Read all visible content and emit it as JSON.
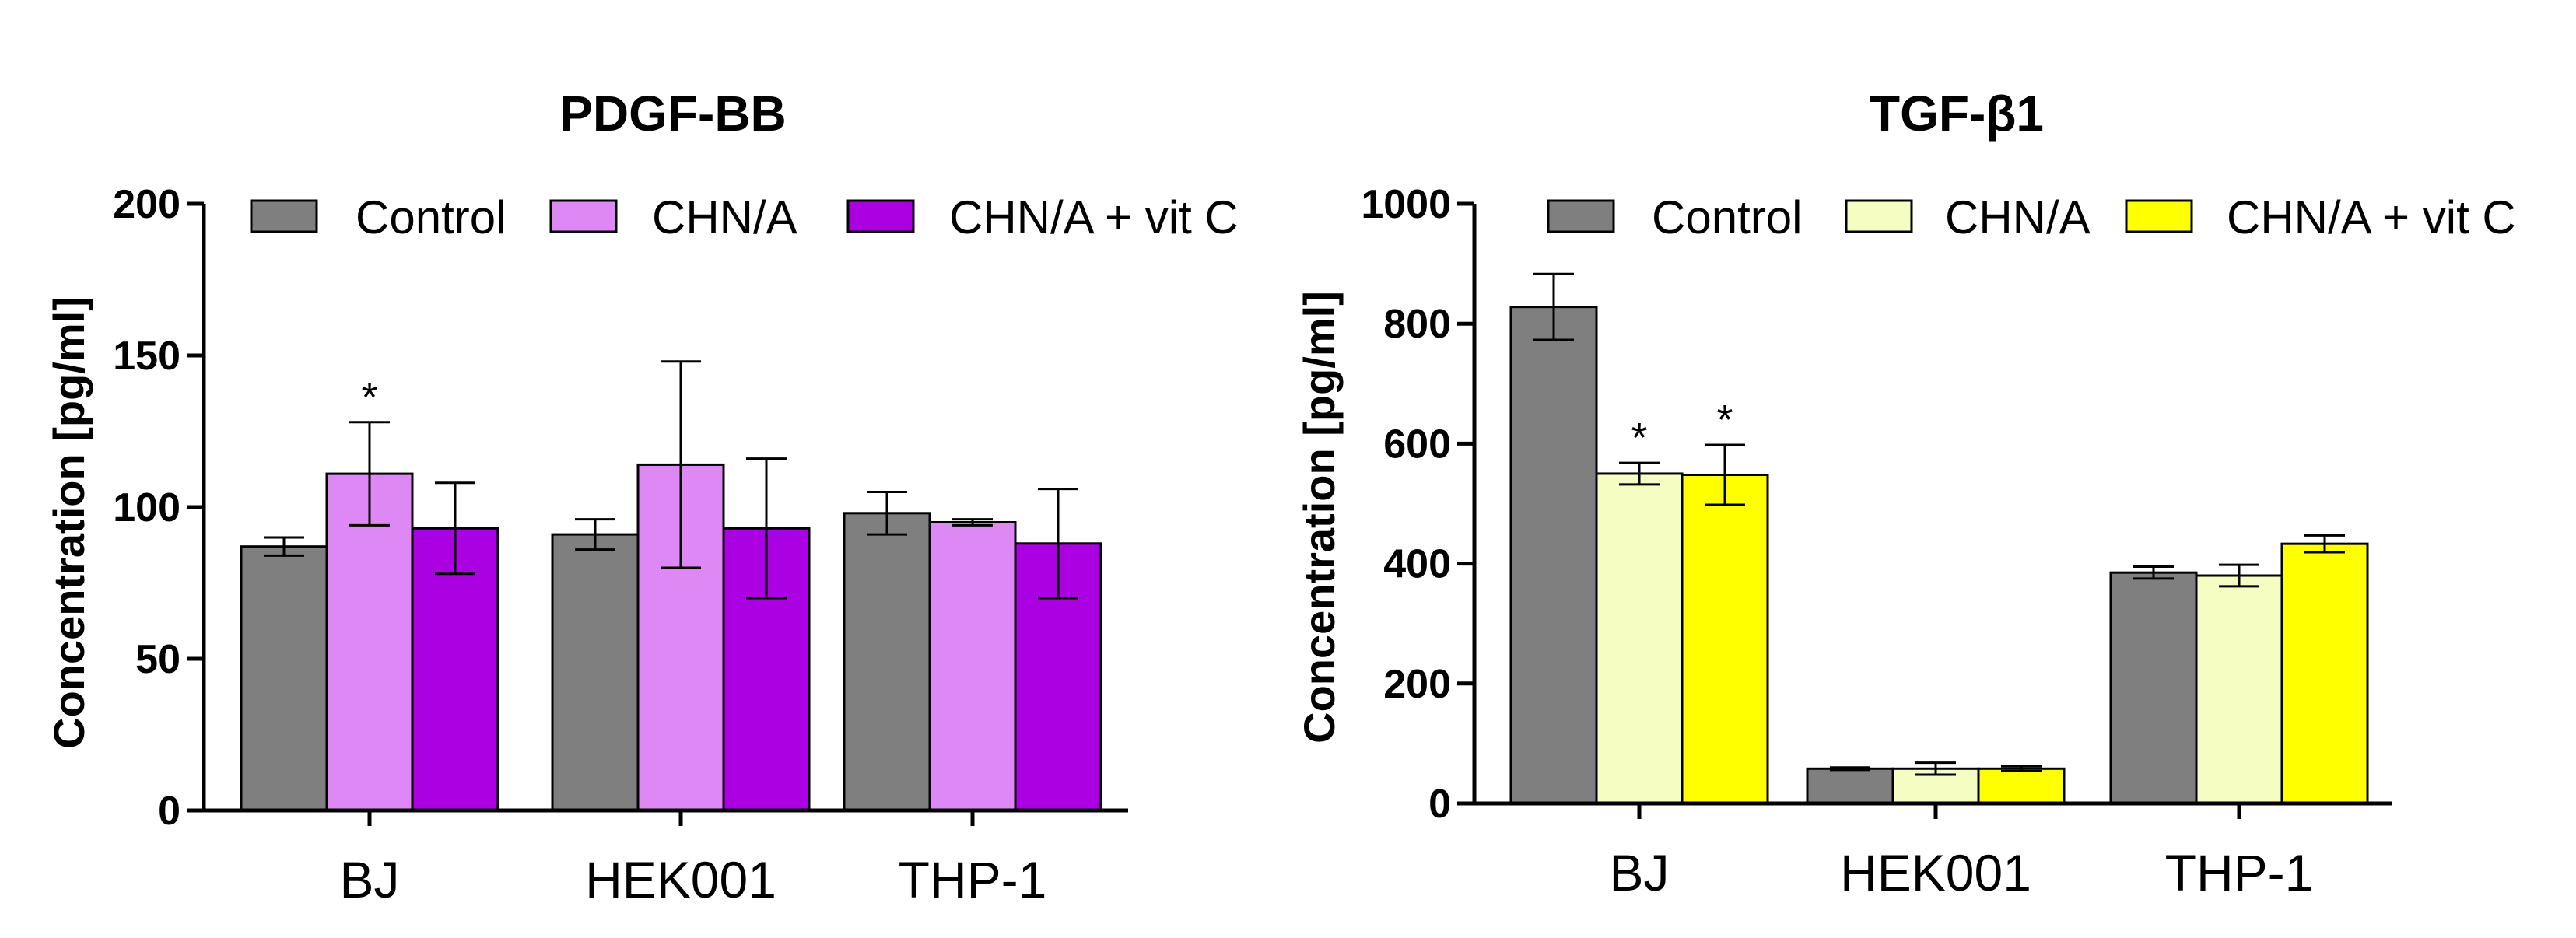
{
  "chart_data": [
    {
      "type": "bar",
      "title": "PDGF-BB",
      "xlabel": "",
      "ylabel": "Concentration [pg/ml]",
      "ylim": [
        0,
        200
      ],
      "yticks": [
        0,
        50,
        100,
        150,
        200
      ],
      "categories": [
        "BJ",
        "HEK001",
        "THP-1"
      ],
      "legend_position": "top",
      "series": [
        {
          "name": "Control",
          "color": "#7f7f7f",
          "values": [
            87,
            91,
            98
          ],
          "errors": [
            3,
            5,
            7
          ]
        },
        {
          "name": "CHN/A",
          "color": "#dd88f5",
          "values": [
            111,
            114,
            95
          ],
          "errors": [
            17,
            34,
            1
          ]
        },
        {
          "name": "CHN/A + vit C",
          "color": "#aa00e2",
          "values": [
            93,
            93,
            88
          ],
          "errors": [
            15,
            23,
            18
          ]
        }
      ],
      "annotations": [
        {
          "text": "*",
          "category": "BJ",
          "series": "CHN/A"
        }
      ]
    },
    {
      "type": "bar",
      "title": "TGF-β1",
      "xlabel": "",
      "ylabel": "Concentration [pg/ml]",
      "ylim": [
        0,
        1000
      ],
      "yticks": [
        0,
        200,
        400,
        600,
        800,
        1000
      ],
      "categories": [
        "BJ",
        "HEK001",
        "THP-1"
      ],
      "legend_position": "top",
      "series": [
        {
          "name": "Control",
          "color": "#7f7f7f",
          "values": [
            828,
            58,
            385
          ],
          "errors": [
            55,
            2,
            10
          ]
        },
        {
          "name": "CHN/A",
          "color": "#f5fdc2",
          "values": [
            550,
            58,
            380
          ],
          "errors": [
            18,
            10,
            18
          ]
        },
        {
          "name": "CHN/A + vit C",
          "color": "#ffff00",
          "values": [
            548,
            58,
            433
          ],
          "errors": [
            50,
            4,
            14
          ]
        }
      ],
      "annotations": [
        {
          "text": "*",
          "category": "BJ",
          "series": "CHN/A"
        },
        {
          "text": "*",
          "category": "BJ",
          "series": "CHN/A + vit C"
        }
      ]
    }
  ]
}
